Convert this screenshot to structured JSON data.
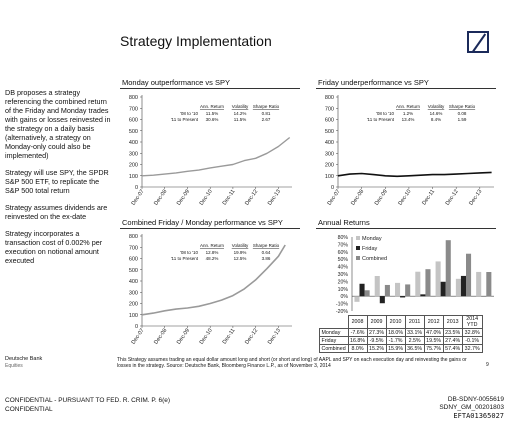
{
  "title": "Strategy Implementation",
  "sidebar": [
    "DB proposes a strategy referencing the combined return of the Friday and Monday trades with gains or losses reinvested in the strategy on a daily basis (alternatively, a strategy on Monday-only could also be implemented)",
    "Strategy will use SPY, the SPDR S&P 500 ETF, to replicate the S&P 500 total return",
    "Strategy assumes dividends are reinvested on the ex-date",
    "Strategy incorporates a transaction cost of 0.002% per execution on notional amount executed"
  ],
  "colors": {
    "accent": "#1b2a5a",
    "line": "#9a9a9a",
    "line_dark": "#111111",
    "monday": "#c4c4c4",
    "friday": "#222222",
    "combined": "#8a8a8a"
  },
  "chart_data": [
    {
      "type": "line",
      "title": "Monday outperformance vs SPY",
      "ylim": [
        0,
        800
      ],
      "yticks": [
        "800",
        "700",
        "600",
        "500",
        "400",
        "300",
        "200",
        "100",
        "0"
      ],
      "categories": [
        "Dec-07",
        "Dec-08",
        "Dec-09",
        "Dec-10",
        "Dec-11",
        "Dec-12",
        "Dec-13"
      ],
      "stats_headers": [
        "Ann. Return",
        "Volatility",
        "Sharpe Ratio"
      ],
      "stats": [
        {
          "label": "'08 to '10",
          "values": [
            "11.5%",
            "14.2%",
            "0.81"
          ]
        },
        {
          "label": "'11 to Present",
          "values": [
            "30.6%",
            "11.5%",
            "2.67"
          ]
        }
      ],
      "series": [
        {
          "x": [
            0,
            0.5,
            1,
            1.5,
            2,
            2.5,
            3,
            3.5,
            4,
            4.5,
            5,
            5.5,
            6,
            6.5
          ],
          "values": [
            100,
            105,
            115,
            125,
            140,
            150,
            170,
            185,
            200,
            235,
            255,
            300,
            360,
            440
          ]
        }
      ]
    },
    {
      "type": "line",
      "title": "Friday underperformance vs SPY",
      "ylim": [
        0,
        800
      ],
      "yticks": [
        "800",
        "700",
        "600",
        "500",
        "400",
        "300",
        "200",
        "100",
        "0"
      ],
      "categories": [
        "Dec-07",
        "Dec-08",
        "Dec-09",
        "Dec-10",
        "Dec-11",
        "Dec-12",
        "Dec-13"
      ],
      "stats_headers": [
        "Ann. Return",
        "Volatility",
        "Sharpe Ratio"
      ],
      "stats": [
        {
          "label": "'08 to '10",
          "values": [
            "1.2%",
            "14.6%",
            "0.08"
          ]
        },
        {
          "label": "'11 to Present",
          "values": [
            "13.4%",
            "8.4%",
            "1.59"
          ]
        }
      ],
      "series": [
        {
          "x": [
            0,
            0.5,
            1,
            1.5,
            2,
            2.5,
            3,
            3.5,
            4,
            4.5,
            5,
            5.5,
            6,
            6.5
          ],
          "values": [
            100,
            115,
            120,
            110,
            100,
            95,
            100,
            105,
            110,
            110,
            115,
            120,
            125,
            130
          ]
        }
      ]
    },
    {
      "type": "line",
      "title": "Combined Friday / Monday performance vs SPY",
      "ylim": [
        0,
        800
      ],
      "yticks": [
        "800",
        "700",
        "600",
        "500",
        "400",
        "300",
        "200",
        "100",
        "0"
      ],
      "categories": [
        "Dec-07",
        "Dec-08",
        "Dec-09",
        "Dec-10",
        "Dec-11",
        "Dec-12",
        "Dec-13"
      ],
      "stats_headers": [
        "Ann. Return",
        "Volatility",
        "Sharpe Ratio"
      ],
      "stats": [
        {
          "label": "'08 to '10",
          "values": [
            "12.8%",
            "19.9%",
            "0.64"
          ]
        },
        {
          "label": "'11 to Present",
          "values": [
            "48.2%",
            "12.5%",
            "3.86"
          ]
        }
      ],
      "series": [
        {
          "x": [
            0,
            0.5,
            1,
            1.5,
            2,
            2.5,
            3,
            3.5,
            4,
            4.5,
            5,
            5.5,
            6,
            6.3
          ],
          "values": [
            100,
            115,
            135,
            150,
            160,
            175,
            200,
            230,
            270,
            330,
            410,
            510,
            620,
            720
          ]
        }
      ]
    },
    {
      "type": "bar",
      "title": "Annual Returns",
      "ylim": [
        -20,
        80
      ],
      "yticks": [
        "80%",
        "70%",
        "60%",
        "50%",
        "40%",
        "30%",
        "20%",
        "10%",
        "0%",
        "-10%",
        "-20%"
      ],
      "categories": [
        "2008",
        "2009",
        "2010",
        "2011",
        "2012",
        "2013",
        "2014 YTD"
      ],
      "series": [
        {
          "name": "Monday",
          "values": [
            -7.6,
            27.3,
            18.0,
            33.1,
            47.0,
            23.5,
            32.8
          ]
        },
        {
          "name": "Friday",
          "values": [
            16.8,
            -9.5,
            -1.7,
            2.5,
            19.5,
            27.4,
            -0.1
          ]
        },
        {
          "name": "Combined",
          "values": [
            8.0,
            15.2,
            15.9,
            36.5,
            75.7,
            57.4,
            32.7
          ]
        }
      ],
      "table_rows": [
        {
          "label": "Monday",
          "values": [
            "-7.6%",
            "27.3%",
            "18.0%",
            "33.1%",
            "47.0%",
            "23.5%",
            "32.8%"
          ]
        },
        {
          "label": "Friday",
          "values": [
            "16.8%",
            "-9.5%",
            "-1.7%",
            "2.5%",
            "19.5%",
            "27.4%",
            "-0.1%"
          ]
        },
        {
          "label": "Combined",
          "values": [
            "8.0%",
            "15.2%",
            "15.9%",
            "36.5%",
            "75.7%",
            "57.4%",
            "32.7%"
          ]
        }
      ]
    }
  ],
  "footer": {
    "org1": "Deutsche Bank",
    "org2": "Equities",
    "note": "This Strategy assumes trading an equal dollar amount long and short (or short and long) of AAPL and SPY on each execution day and reinvesting the gains or losses in the strategy. Source: Deutsche Bank, Bloomberg Finance L.P., as of November 3, 2014",
    "page": "9",
    "conf1": "CONFIDENTIAL - PURSUANT TO FED. R. CRIM. P. 6(e)",
    "conf2": "CONFIDENTIAL",
    "id1": "DB-SDNY-0055619",
    "id2": "SDNY_GM_00201803",
    "id3": "EFTA01365027"
  }
}
